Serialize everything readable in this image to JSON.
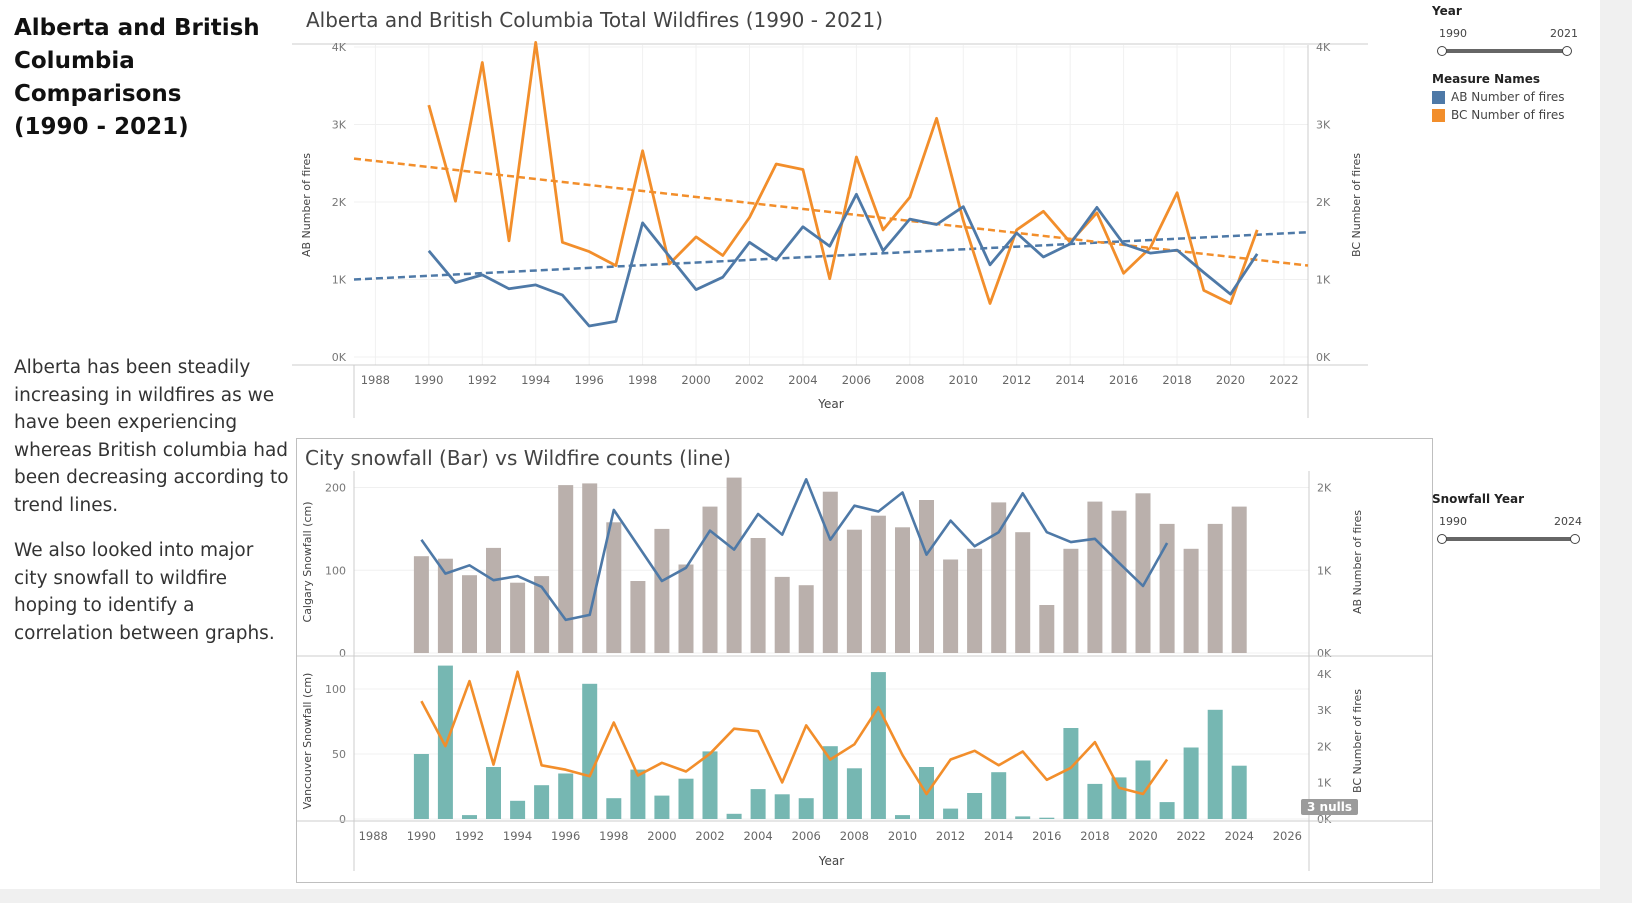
{
  "dashboard": {
    "title": "Alberta and British\nColumbia Comparisons\n(1990 - 2021)",
    "paragraph1": "Alberta has been steadily increasing in wildfires as we have been experiencing whereas British columbia had been decreasing according to trend lines.",
    "paragraph2": "We also looked into major city snowfall to wildfire hoping to identify a correlation between graphs."
  },
  "filters": {
    "year": {
      "title": "Year",
      "min_label": "1990",
      "max_label": "2021",
      "range": [
        1990,
        2021
      ]
    },
    "measure_names": {
      "title": "Measure Names",
      "items": [
        {
          "label": "AB Number of fires",
          "color": "#4e79a7"
        },
        {
          "label": "BC Number of fires",
          "color": "#f28e2b"
        }
      ]
    },
    "snowfall_year": {
      "title": "Snowfall Year",
      "min_label": "1990",
      "max_label": "2024",
      "range": [
        1990,
        2024
      ]
    }
  },
  "colors": {
    "ab": "#4e79a7",
    "bc": "#f28e2b",
    "calgary_bar": "#bab0ac",
    "vancouver_bar": "#76b7b2"
  },
  "chart_data": [
    {
      "type": "line",
      "title": "Alberta and British Columbia Total Wildfires (1990 - 2021)",
      "xlabel": "Year",
      "ylabel_left": "AB Number of fires",
      "ylabel_right": "BC Number of fires",
      "x_ticks": [
        "1988",
        "1990",
        "1992",
        "1994",
        "1996",
        "1998",
        "2000",
        "2002",
        "2004",
        "2006",
        "2008",
        "2010",
        "2012",
        "2014",
        "2016",
        "2018",
        "2020",
        "2022"
      ],
      "y_ticks_left": [
        "0K",
        "1K",
        "2K",
        "3K",
        "4K"
      ],
      "y_ticks_right": [
        "0K",
        "1K",
        "2K",
        "3K",
        "4K"
      ],
      "xlim": [
        1987.2,
        2022.9
      ],
      "ylim": [
        0,
        4000
      ],
      "grid": true,
      "x": [
        1990,
        1991,
        1992,
        1993,
        1994,
        1995,
        1996,
        1997,
        1998,
        1999,
        2000,
        2001,
        2002,
        2003,
        2004,
        2005,
        2006,
        2007,
        2008,
        2009,
        2010,
        2011,
        2012,
        2013,
        2014,
        2015,
        2016,
        2017,
        2018,
        2019,
        2020,
        2021
      ],
      "series": [
        {
          "name": "AB Number of fires",
          "values": [
            1370,
            960,
            1060,
            880,
            930,
            800,
            400,
            460,
            1730,
            1300,
            870,
            1030,
            1480,
            1250,
            1680,
            1430,
            2100,
            1370,
            1780,
            1710,
            1940,
            1190,
            1600,
            1290,
            1460,
            1930,
            1460,
            1340,
            1380,
            1090,
            810,
            1330
          ]
        },
        {
          "name": "BC Number of fires",
          "values": [
            3250,
            2010,
            3800,
            1500,
            4060,
            1480,
            1360,
            1180,
            2660,
            1200,
            1550,
            1310,
            1800,
            2490,
            2420,
            1010,
            2580,
            1640,
            2060,
            3080,
            1760,
            690,
            1640,
            1880,
            1480,
            1860,
            1080,
            1410,
            2120,
            860,
            690,
            1640
          ]
        }
      ],
      "trend_lines": [
        {
          "name": "AB Number of fires",
          "from": [
            1987.2,
            1000
          ],
          "to": [
            2022.9,
            1610
          ]
        },
        {
          "name": "BC Number of fires",
          "from": [
            1987.2,
            2560
          ],
          "to": [
            2022.9,
            1180
          ]
        }
      ]
    },
    {
      "type": "bar",
      "title": "City snowfall (Bar) vs Wildfire counts (line)",
      "xlabel": "Year",
      "x_ticks": [
        "1988",
        "1990",
        "1992",
        "1994",
        "1996",
        "1998",
        "2000",
        "2002",
        "2004",
        "2006",
        "2008",
        "2010",
        "2012",
        "2014",
        "2016",
        "2018",
        "2020",
        "2022",
        "2024",
        "2026"
      ],
      "xlim": [
        1987.2,
        2026.9
      ],
      "nulls_label": "3 nulls",
      "panels": [
        {
          "ylabel_left": "Calgary Snowfall (cm)",
          "ylabel_right": "AB Number of fires",
          "y_ticks_left": [
            "0",
            "100",
            "200"
          ],
          "y_ticks_right": [
            "0K",
            "1K",
            "2K"
          ],
          "ylim_left": [
            0,
            220
          ],
          "ylim_right": [
            0,
            2200
          ],
          "bars": {
            "x": [
              1990,
              1991,
              1992,
              1993,
              1994,
              1995,
              1996,
              1997,
              1998,
              1999,
              2000,
              2001,
              2002,
              2003,
              2004,
              2005,
              2006,
              2007,
              2008,
              2009,
              2010,
              2011,
              2012,
              2013,
              2014,
              2015,
              2016,
              2017,
              2018,
              2019,
              2020,
              2021,
              2022,
              2023,
              2024
            ],
            "values": [
              117,
              114,
              94,
              127,
              85,
              93,
              203,
              205,
              158,
              87,
              150,
              107,
              177,
              212,
              139,
              92,
              82,
              195,
              149,
              166,
              152,
              185,
              113,
              126,
              182,
              146,
              58,
              126,
              183,
              172,
              193,
              156,
              126,
              156,
              177
            ]
          },
          "line": {
            "name": "AB Number of fires",
            "values": [
              1370,
              960,
              1060,
              880,
              930,
              800,
              400,
              460,
              1730,
              1300,
              870,
              1030,
              1480,
              1250,
              1680,
              1430,
              2100,
              1370,
              1780,
              1710,
              1940,
              1190,
              1600,
              1290,
              1460,
              1930,
              1460,
              1340,
              1380,
              1090,
              810,
              1330
            ]
          }
        },
        {
          "ylabel_left": "Vancouver Snowfall (cm)",
          "ylabel_right": "BC Number of fires",
          "y_ticks_left": [
            "0",
            "50",
            "100"
          ],
          "y_ticks_right": [
            "0K",
            "1K",
            "2K",
            "3K",
            "4K"
          ],
          "ylim_left": [
            0,
            120
          ],
          "ylim_right": [
            0,
            4300
          ],
          "bars": {
            "x": [
              1990,
              1991,
              1992,
              1993,
              1994,
              1995,
              1996,
              1997,
              1998,
              1999,
              2000,
              2001,
              2002,
              2003,
              2004,
              2005,
              2006,
              2007,
              2008,
              2009,
              2010,
              2011,
              2012,
              2013,
              2014,
              2015,
              2016,
              2017,
              2018,
              2019,
              2020,
              2021,
              2022,
              2023,
              2024
            ],
            "values": [
              50,
              118,
              3,
              40,
              14,
              26,
              35,
              104,
              16,
              38,
              18,
              31,
              52,
              4,
              23,
              19,
              16,
              56,
              39,
              113,
              3,
              40,
              8,
              20,
              36,
              2,
              1,
              70,
              27,
              32,
              45,
              13,
              55,
              84,
              41
            ]
          },
          "line": {
            "name": "BC Number of fires",
            "values": [
              3250,
              2010,
              3800,
              1500,
              4060,
              1480,
              1360,
              1180,
              2660,
              1200,
              1550,
              1310,
              1800,
              2490,
              2420,
              1010,
              2580,
              1640,
              2060,
              3080,
              1760,
              690,
              1640,
              1880,
              1480,
              1860,
              1080,
              1410,
              2120,
              860,
              690,
              1640
            ]
          }
        }
      ]
    }
  ]
}
